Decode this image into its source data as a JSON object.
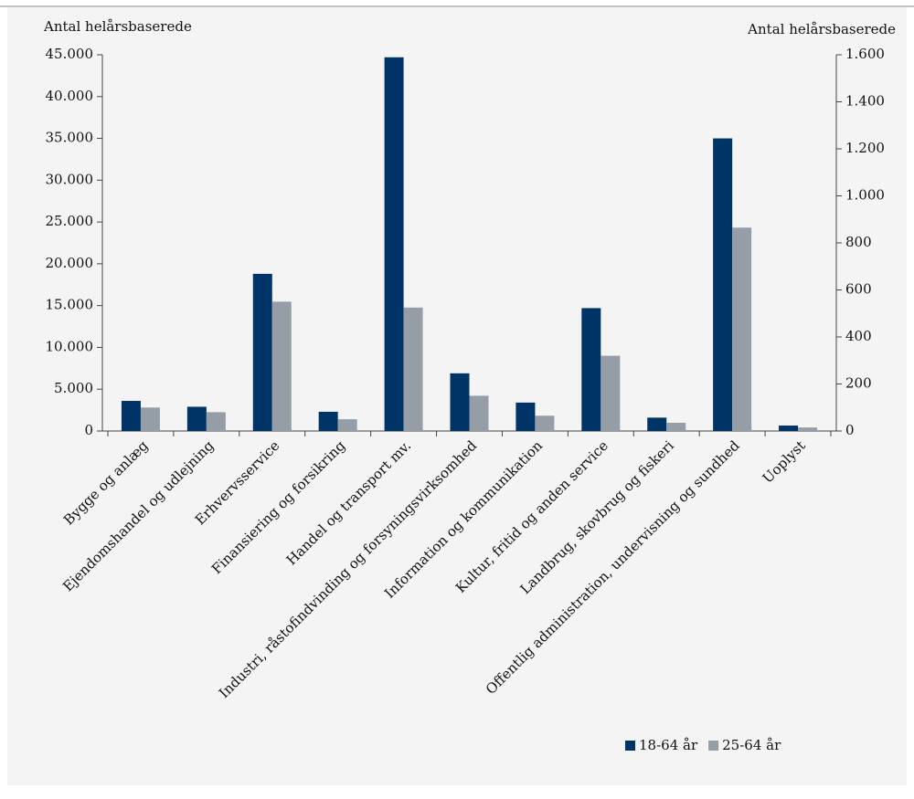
{
  "chart_data": {
    "type": "bar",
    "ylabel": "Antal helårsbaserede",
    "y2label": "Antal helårsbaserede",
    "categories": [
      "Bygge og anlæg",
      "Ejendomshandel og udlejning",
      "Erhvervsservice",
      "Finansiering og forsikring",
      "Handel og transport mv.",
      "Industri, råstofindvinding og forsyningsvirksomhed",
      "Information og kommunikation",
      "Kultur, fritid og anden service",
      "Landbrug, skovbrug og fiskeri",
      "Offentlig administration, undervisning og sundhed",
      "Uoplyst"
    ],
    "series": [
      {
        "name": "18-64 år",
        "color": "#003366",
        "values": [
          3600,
          2900,
          18800,
          2300,
          44700,
          6900,
          3400,
          14700,
          1600,
          35000,
          650
        ]
      },
      {
        "name": "25-64 år",
        "color": "#959ea6",
        "axis": "y2",
        "values": [
          100,
          80,
          550,
          50,
          525,
          150,
          65,
          320,
          35,
          865,
          15
        ]
      }
    ],
    "ylim": [
      0,
      45000
    ],
    "yticks": [
      0,
      {
        "value": 5000,
        "label": "5.000"
      },
      {
        "value": 10000,
        "label": "10.000"
      },
      {
        "value": 15000,
        "label": "15.000"
      },
      {
        "value": 20000,
        "label": "20.000"
      },
      {
        "value": 25000,
        "label": "25.000"
      },
      {
        "value": 30000,
        "label": "30.000"
      },
      {
        "value": 35000,
        "label": "35.000"
      },
      {
        "value": 40000,
        "label": "40.000"
      },
      {
        "value": 45000,
        "label": "45.000"
      }
    ],
    "y2lim": [
      0,
      1600
    ],
    "y2ticks": [
      0,
      200,
      400,
      600,
      800,
      {
        "value": 1000,
        "label": "1.000"
      },
      {
        "value": 1200,
        "label": "1.200"
      },
      {
        "value": 1400,
        "label": "1.400"
      },
      {
        "value": 1600,
        "label": "1.600"
      }
    ],
    "legend": "lower right"
  }
}
